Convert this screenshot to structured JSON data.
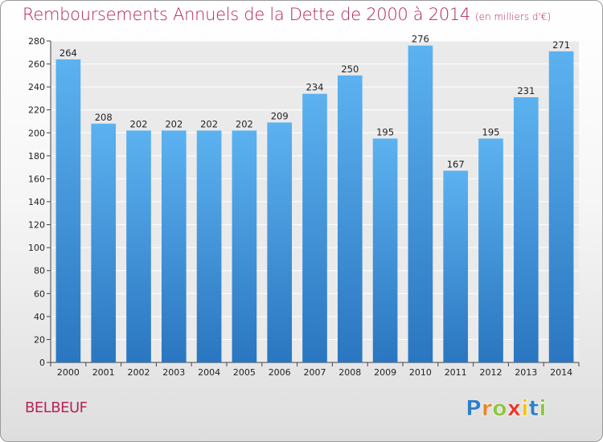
{
  "chart_data": {
    "type": "bar",
    "title": "Remboursements Annuels de la Dette de 2000 à 2014",
    "subtitle": "(en milliers d'€)",
    "categories": [
      "2000",
      "2001",
      "2002",
      "2003",
      "2004",
      "2005",
      "2006",
      "2007",
      "2008",
      "2009",
      "2010",
      "2011",
      "2012",
      "2013",
      "2014"
    ],
    "values": [
      264,
      208,
      202,
      202,
      202,
      202,
      209,
      234,
      250,
      195,
      276,
      167,
      195,
      231,
      271
    ],
    "value_labels": [
      "264",
      "208",
      "202",
      "202",
      "202",
      "202",
      "209",
      "234",
      "250",
      "195",
      "276",
      "167",
      "195",
      "231",
      "271"
    ],
    "y_ticks": [
      "0",
      "20",
      "40",
      "60",
      "80",
      "100",
      "120",
      "140",
      "160",
      "180",
      "200",
      "220",
      "240",
      "260",
      "280"
    ],
    "ylim": [
      0,
      280
    ],
    "grid": true,
    "bar_color": "#3a8fd6"
  },
  "footer": {
    "place": "BELBEUF",
    "logo_text": "Proxiti"
  }
}
